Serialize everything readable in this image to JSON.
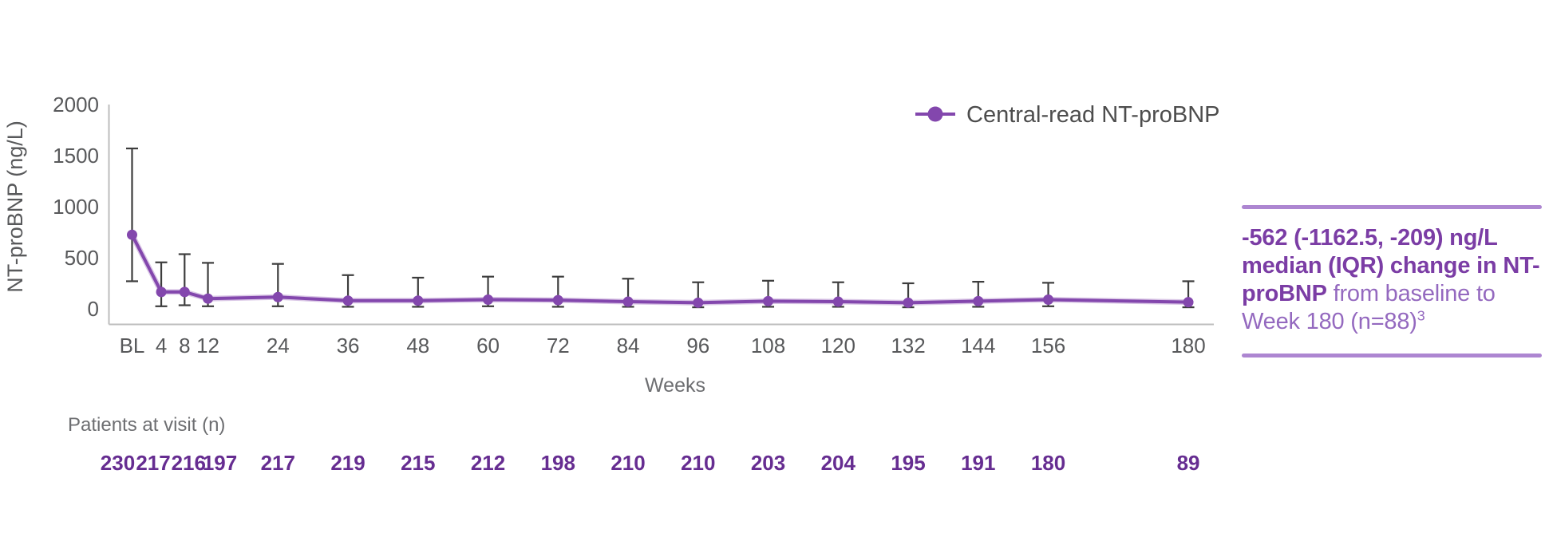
{
  "figure": {
    "background": "#ffffff"
  },
  "chart_data": {
    "type": "line",
    "title": "",
    "xlabel": "Weeks",
    "ylabel": "NT-proBNP (ng/L)",
    "ylim": [
      0,
      2000
    ],
    "yticks": [
      0,
      500,
      1000,
      1500,
      2000
    ],
    "x_tick_labels": [
      "BL",
      "4",
      "8",
      "12",
      "24",
      "36",
      "48",
      "60",
      "72",
      "84",
      "96",
      "108",
      "120",
      "132",
      "144",
      "156",
      "180"
    ],
    "grid": false,
    "legend_position": "top-right",
    "legend": {
      "label": "Central-read NT-proBNP"
    },
    "patients_label": "Patients at visit (n)",
    "error_bar_style": "IQR whiskers",
    "colors": {
      "series": "#8347ad",
      "error_bar": "#3d3d3d",
      "axis": "#bdbdbd",
      "tick_text": "#58595b",
      "axis_title_text": "#6d6e71",
      "legend_text": "#4d4d4d",
      "patients_n_text": "#662d91"
    },
    "points": [
      {
        "label": "BL",
        "week": -1,
        "median": 725,
        "q1": 270,
        "q3": 1570,
        "n": 230
      },
      {
        "label": "4",
        "week": 4,
        "median": 165,
        "q1": 25,
        "q3": 455,
        "n": 217
      },
      {
        "label": "8",
        "week": 8,
        "median": 165,
        "q1": 35,
        "q3": 535,
        "n": 216
      },
      {
        "label": "12",
        "week": 12,
        "median": 100,
        "q1": 25,
        "q3": 450,
        "n": 197
      },
      {
        "label": "24",
        "week": 24,
        "median": 115,
        "q1": 25,
        "q3": 440,
        "n": 217
      },
      {
        "label": "36",
        "week": 36,
        "median": 80,
        "q1": 20,
        "q3": 330,
        "n": 219
      },
      {
        "label": "48",
        "week": 48,
        "median": 80,
        "q1": 20,
        "q3": 305,
        "n": 215
      },
      {
        "label": "60",
        "week": 60,
        "median": 90,
        "q1": 25,
        "q3": 315,
        "n": 212
      },
      {
        "label": "72",
        "week": 72,
        "median": 85,
        "q1": 20,
        "q3": 315,
        "n": 198
      },
      {
        "label": "84",
        "week": 84,
        "median": 70,
        "q1": 20,
        "q3": 295,
        "n": 210
      },
      {
        "label": "96",
        "week": 96,
        "median": 60,
        "q1": 15,
        "q3": 260,
        "n": 210
      },
      {
        "label": "108",
        "week": 108,
        "median": 75,
        "q1": 20,
        "q3": 275,
        "n": 203
      },
      {
        "label": "120",
        "week": 120,
        "median": 70,
        "q1": 20,
        "q3": 260,
        "n": 204
      },
      {
        "label": "132",
        "week": 132,
        "median": 60,
        "q1": 15,
        "q3": 250,
        "n": 195
      },
      {
        "label": "144",
        "week": 144,
        "median": 75,
        "q1": 20,
        "q3": 265,
        "n": 191
      },
      {
        "label": "156",
        "week": 156,
        "median": 90,
        "q1": 25,
        "q3": 255,
        "n": 180
      },
      {
        "label": "180",
        "week": 180,
        "median": 65,
        "q1": 15,
        "q3": 270,
        "n": 89
      }
    ]
  },
  "annotation": {
    "bold_text": "-562 (-1162.5, -209) ng/L median (IQR) change in NT-proBNP",
    "regular_text": " from baseline to Week 180 (n=88)",
    "superscript": "3",
    "text_color": "#9469bf",
    "bold_color": "#7b3da5",
    "rule_color": "#ad86d1"
  }
}
